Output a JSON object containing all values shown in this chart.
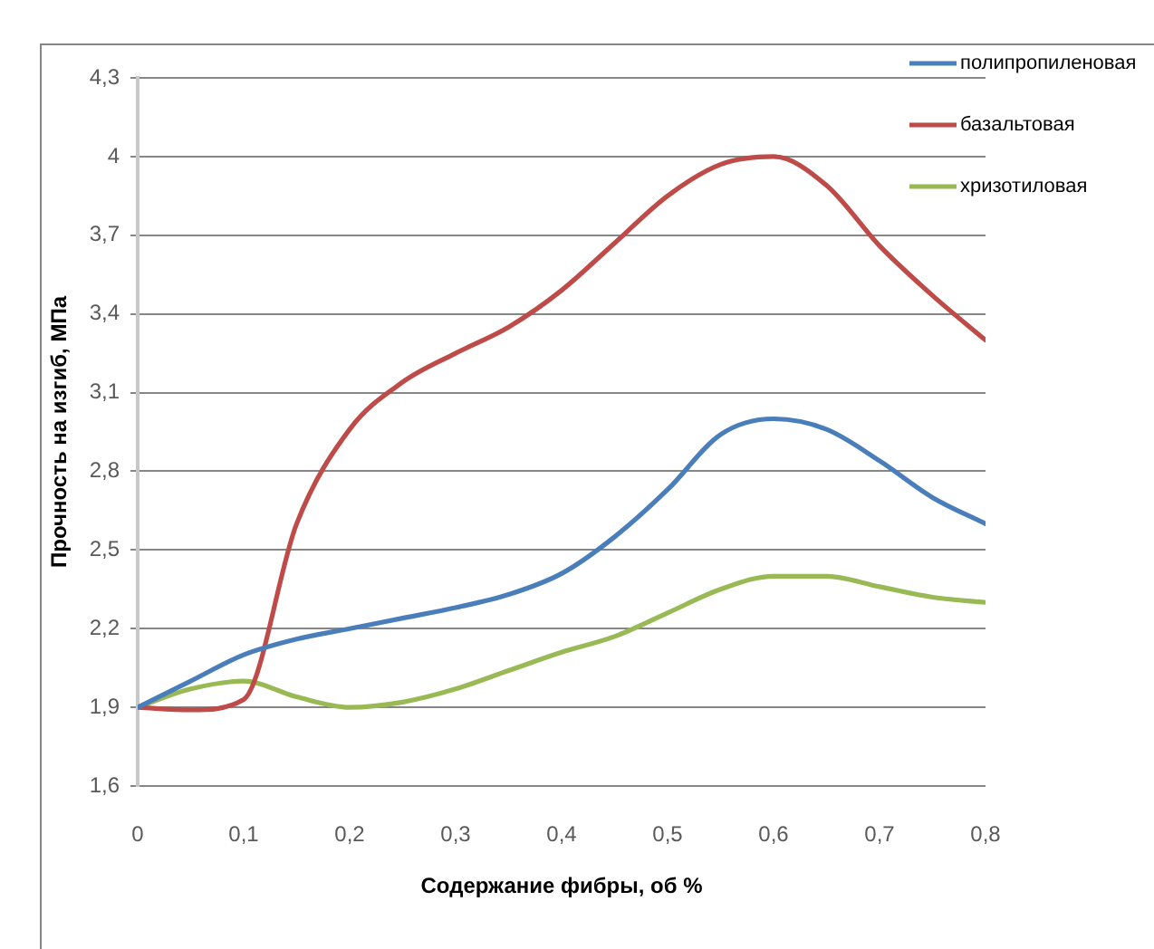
{
  "chart_data": {
    "type": "line",
    "xlabel": "Содержание фибры, об %",
    "ylabel": "Прочность на изгиб, МПа",
    "x": [
      0,
      0.05,
      0.1,
      0.15,
      0.2,
      0.25,
      0.3,
      0.35,
      0.4,
      0.45,
      0.5,
      0.55,
      0.6,
      0.65,
      0.7,
      0.75,
      0.8
    ],
    "xlim": [
      0,
      0.8
    ],
    "xticks": [
      0,
      {
        "value": 0.1,
        "label": "0,1"
      },
      {
        "value": 0.2,
        "label": "0,2"
      },
      {
        "value": 0.3,
        "label": "0,3"
      },
      {
        "value": 0.4,
        "label": "0,4"
      },
      {
        "value": 0.5,
        "label": "0,5"
      },
      {
        "value": 0.6,
        "label": "0,6"
      },
      {
        "value": 0.7,
        "label": "0,7"
      },
      {
        "value": 0.8,
        "label": "0,8"
      }
    ],
    "ylim": [
      1.6,
      4.3
    ],
    "yticks": [
      {
        "value": 1.6,
        "label": "1,6"
      },
      {
        "value": 1.9,
        "label": "1,9"
      },
      {
        "value": 2.2,
        "label": "2,2"
      },
      {
        "value": 2.5,
        "label": "2,5"
      },
      {
        "value": 2.8,
        "label": "2,8"
      },
      {
        "value": 3.1,
        "label": "3,1"
      },
      {
        "value": 3.4,
        "label": "3,4"
      },
      {
        "value": 3.7,
        "label": "3,7"
      },
      4,
      {
        "value": 4.3,
        "label": "4,3"
      }
    ],
    "grid": "y",
    "legend": "top right",
    "marker": "none",
    "line_style": "solid",
    "series": [
      {
        "name": "полипропиленовая",
        "color": "#4a7ebb",
        "values": [
          1.9,
          2.0,
          2.1,
          2.16,
          2.2,
          2.24,
          2.28,
          2.33,
          2.41,
          2.55,
          2.73,
          2.94,
          3.0,
          2.96,
          2.84,
          2.7,
          2.6
        ]
      },
      {
        "name": "базальтовая",
        "color": "#be4b48",
        "values": [
          1.9,
          1.89,
          1.93,
          2.6,
          2.96,
          3.14,
          3.25,
          3.35,
          3.49,
          3.67,
          3.85,
          3.97,
          4.0,
          3.89,
          3.66,
          3.47,
          3.3
        ]
      },
      {
        "name": "хризотиловая",
        "color": "#98b954",
        "values": [
          1.9,
          1.97,
          2.0,
          1.94,
          1.9,
          1.92,
          1.97,
          2.04,
          2.11,
          2.17,
          2.26,
          2.35,
          2.4,
          2.4,
          2.36,
          2.32,
          2.3
        ]
      }
    ]
  }
}
